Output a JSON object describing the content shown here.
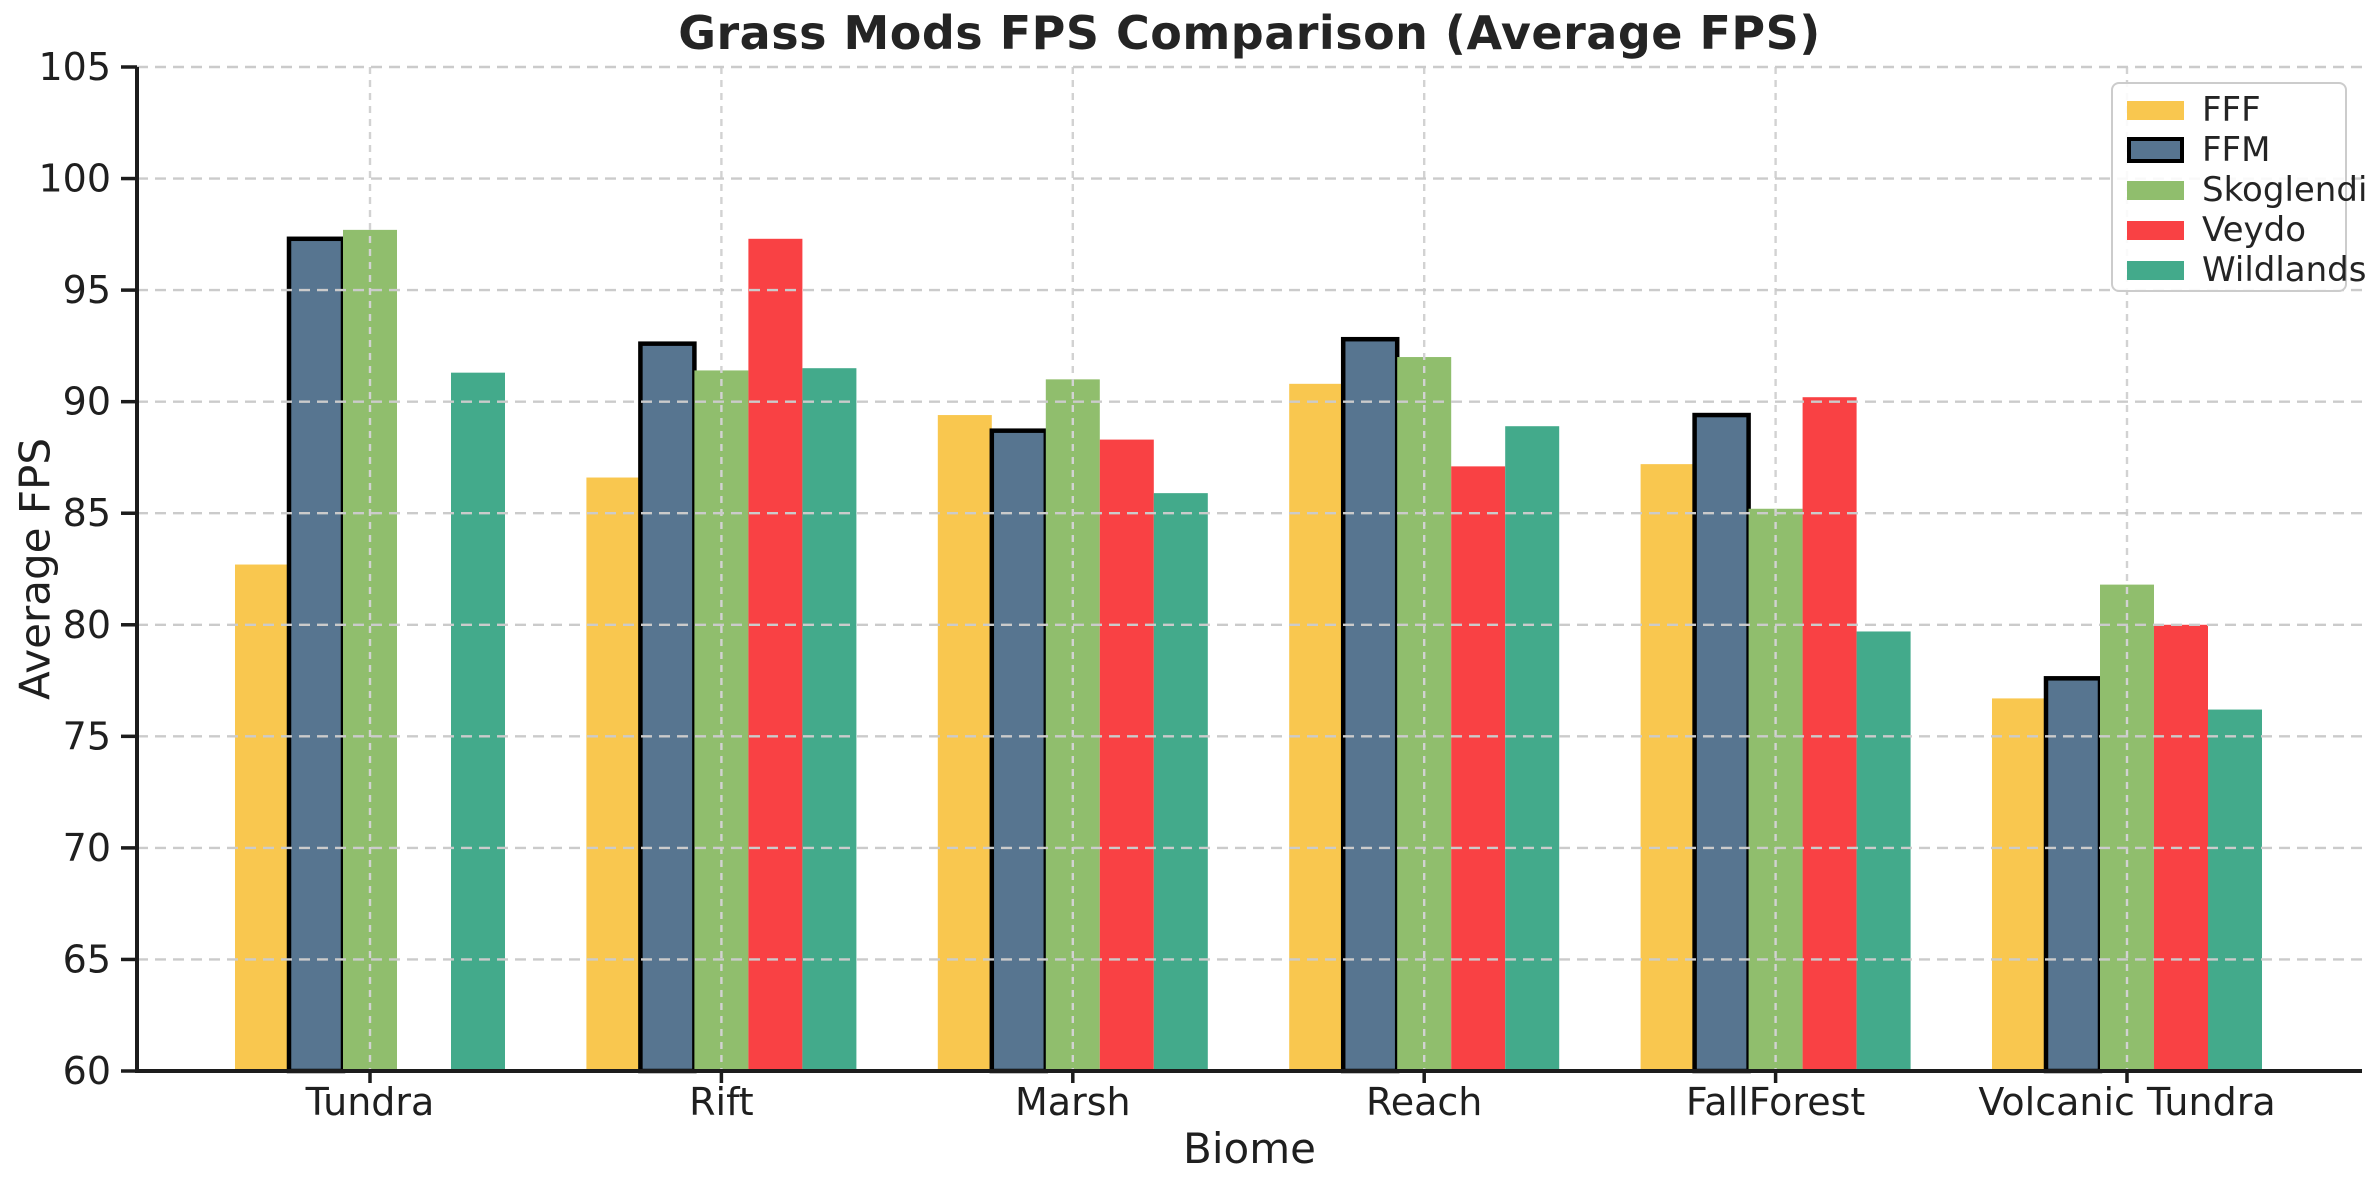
{
  "title": "Grass Mods FPS Comparison (Average FPS)",
  "chart_data": {
    "type": "bar",
    "title": "Grass Mods FPS Comparison (Average FPS)",
    "xlabel": "Biome",
    "ylabel": "Average FPS",
    "categories": [
      "Tundra",
      "Rift",
      "Marsh",
      "Reach",
      "FallForest",
      "Volcanic Tundra"
    ],
    "series": [
      {
        "name": "FFF",
        "color": "#f9c74f",
        "edge": null,
        "values": [
          82.7,
          86.6,
          89.4,
          90.8,
          87.2,
          76.7
        ]
      },
      {
        "name": "FFM",
        "color": "#577590",
        "edge": "#000000",
        "values": [
          97.3,
          92.6,
          88.7,
          92.8,
          89.4,
          77.6
        ]
      },
      {
        "name": "Skoglendi",
        "color": "#90be6d",
        "edge": null,
        "values": [
          97.7,
          91.4,
          91.0,
          92.0,
          85.2,
          81.8
        ]
      },
      {
        "name": "Veydo",
        "color": "#f94144",
        "edge": null,
        "values": [
          null,
          97.3,
          88.3,
          87.1,
          90.2,
          80.0
        ]
      },
      {
        "name": "Wildlands",
        "color": "#43aa8b",
        "edge": null,
        "values": [
          91.3,
          91.5,
          85.9,
          88.9,
          79.7,
          76.2
        ]
      }
    ],
    "ylim": [
      60,
      105
    ],
    "ytick_step": 5,
    "yticks": [
      60,
      65,
      70,
      75,
      80,
      85,
      90,
      95,
      100,
      105
    ],
    "grid": true,
    "grid_style": "dashed",
    "grid_color": "#cbcbcb",
    "axis_color": "#1c1c1c",
    "legend_position": "upper right",
    "legend_labels": [
      "FFF",
      "FFM",
      "Skoglendi",
      "Veydo",
      "Wildlands"
    ]
  }
}
